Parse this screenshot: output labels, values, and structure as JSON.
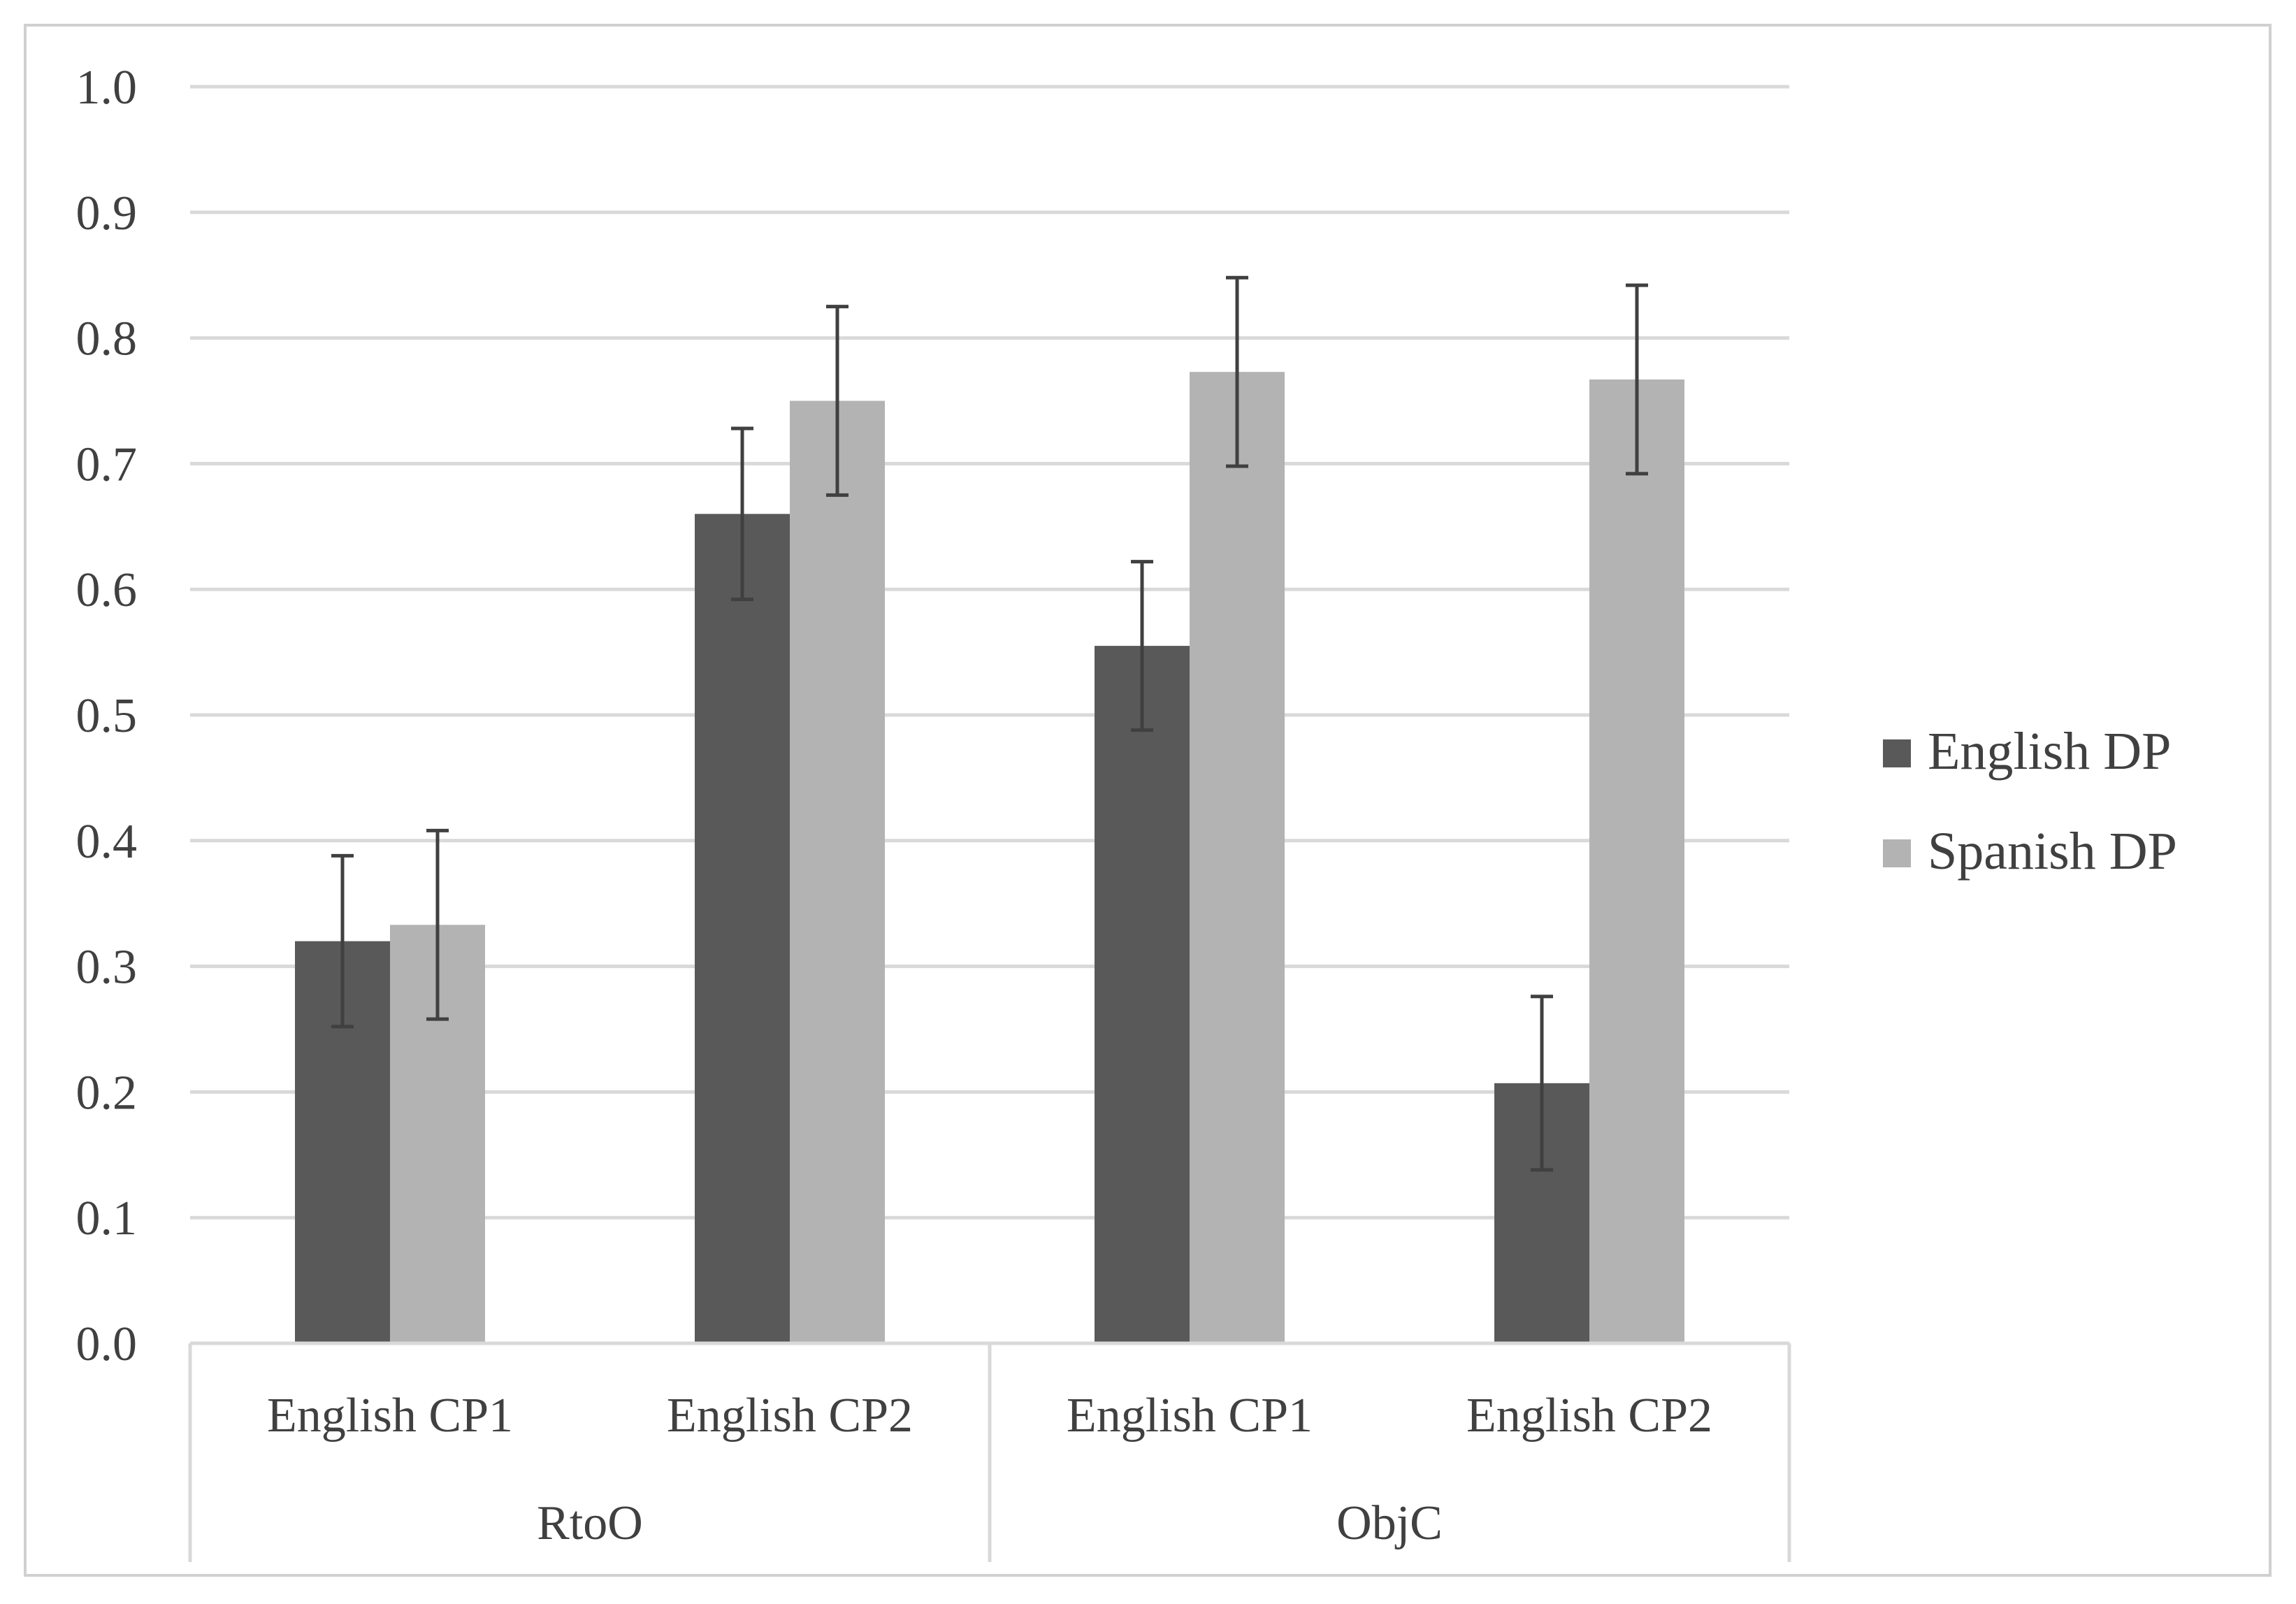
{
  "chart_data": {
    "type": "bar",
    "title": "",
    "xlabel": "",
    "ylabel": "",
    "ylim": [
      0,
      1.0
    ],
    "yticks": [
      "0.0",
      "0.1",
      "0.2",
      "0.3",
      "0.4",
      "0.5",
      "0.6",
      "0.7",
      "0.8",
      "0.9",
      "1.0"
    ],
    "grid": true,
    "legend_position": "right",
    "groups": [
      {
        "label": "RtoO",
        "categories": [
          "English CP1",
          "English CP2"
        ]
      },
      {
        "label": "ObjC",
        "categories": [
          "English CP1",
          "English CP2"
        ]
      }
    ],
    "categories": [
      "English CP1",
      "English CP2",
      "English CP1",
      "English CP2"
    ],
    "series": [
      {
        "name": "English DP",
        "color": "#595959",
        "values": [
          0.32,
          0.66,
          0.555,
          0.207
        ],
        "errors": [
          0.068,
          0.068,
          0.067,
          0.069
        ]
      },
      {
        "name": "Spanish DP",
        "color": "#b3b3b3",
        "values": [
          0.333,
          0.75,
          0.773,
          0.767
        ],
        "errors": [
          0.075,
          0.075,
          0.075,
          0.075
        ]
      }
    ]
  }
}
